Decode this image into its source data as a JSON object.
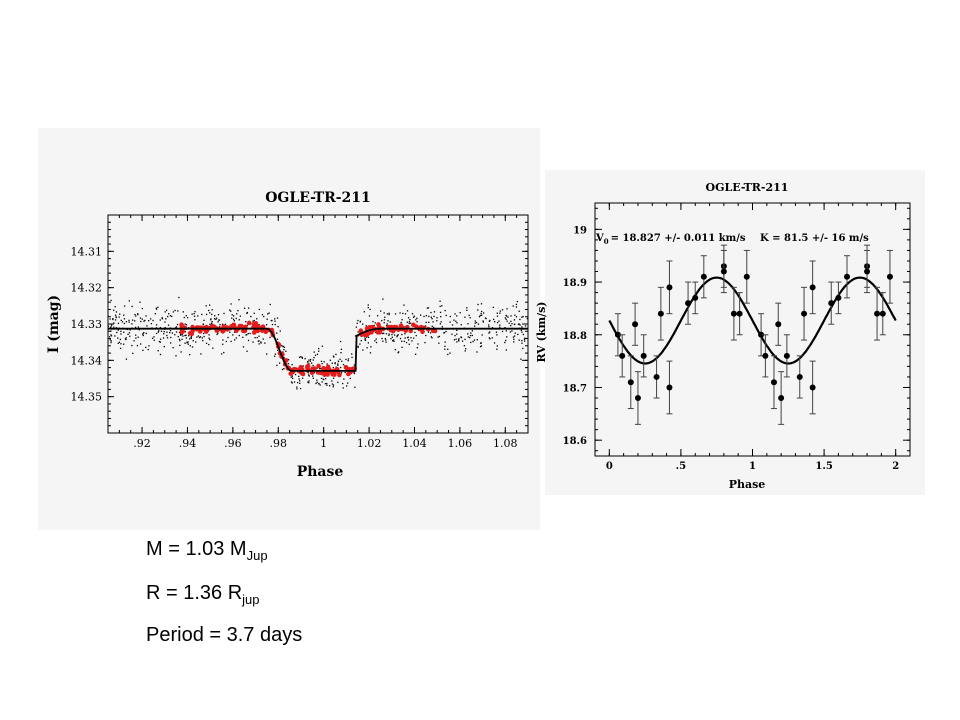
{
  "captions": {
    "mass": {
      "text": "M = 1.03 M",
      "sub": "Jup"
    },
    "radius": {
      "text": "R = 1.36 R",
      "sub": "jup"
    },
    "period": {
      "text": "Period = 3.7 days"
    }
  },
  "chart_data": [
    {
      "type": "scatter",
      "title": "OGLE-TR-211",
      "xlabel": "Phase",
      "ylabel": "I (mag)",
      "xlim": [
        0.905,
        1.09
      ],
      "ylim": [
        14.3,
        14.36
      ],
      "y_inverted": true,
      "xticks": [
        0.92,
        0.94,
        0.96,
        0.98,
        1.0,
        1.02,
        1.04,
        1.06,
        1.08
      ],
      "xtick_labels": [
        ".92",
        ".94",
        ".96",
        ".98",
        "1",
        "1.02",
        "1.04",
        "1.06",
        "1.08"
      ],
      "yticks": [
        14.31,
        14.32,
        14.33,
        14.34,
        14.35
      ],
      "ytick_labels": [
        "14.31",
        "14.32",
        "14.33",
        "14.34",
        "14.35"
      ],
      "model": {
        "name": "transit model",
        "baseline": 14.3313,
        "depth": 0.0116,
        "ingress_start": 0.975,
        "full_start": 0.986,
        "full_end": 1.014,
        "egress_end": 1.025
      },
      "series": [
        {
          "name": "photometry",
          "color": "#000000",
          "marker": "dot",
          "points": "scatter around model, phase 0.905-1.09"
        },
        {
          "name": "binned",
          "color": "#e51c1c",
          "marker": "filled-circle",
          "points": "scatter around model, phase 0.937-1.05"
        }
      ]
    },
    {
      "type": "scatter",
      "title": "OGLE-TR-211",
      "annotations": [
        "V",
        "0",
        "= 18.827 +/- 0.011 km/s",
        "K = 81.5 +/- 16 m/s"
      ],
      "xlabel": "Phase",
      "ylabel": "RV (km/s)",
      "xlim": [
        -0.1,
        2.1
      ],
      "ylim": [
        18.57,
        19.05
      ],
      "xticks": [
        0,
        0.5,
        1,
        1.5,
        2
      ],
      "xtick_labels": [
        "0",
        ".5",
        "1",
        "1.5",
        "2"
      ],
      "yticks": [
        18.6,
        18.7,
        18.8,
        18.9,
        19
      ],
      "ytick_labels": [
        "18.6",
        "18.7",
        "18.8",
        "18.9",
        "19"
      ],
      "model": {
        "name": "RV fit",
        "v0": 18.827,
        "k": 0.0815,
        "phase_offset": 0.0
      },
      "points": [
        {
          "x": 0.06,
          "y": 18.8,
          "err": 0.04
        },
        {
          "x": 0.09,
          "y": 18.76,
          "err": 0.04
        },
        {
          "x": 0.15,
          "y": 18.71,
          "err": 0.05
        },
        {
          "x": 0.18,
          "y": 18.82,
          "err": 0.04
        },
        {
          "x": 0.2,
          "y": 18.68,
          "err": 0.05
        },
        {
          "x": 0.24,
          "y": 18.76,
          "err": 0.04
        },
        {
          "x": 0.33,
          "y": 18.72,
          "err": 0.04
        },
        {
          "x": 0.36,
          "y": 18.84,
          "err": 0.05
        },
        {
          "x": 0.42,
          "y": 18.89,
          "err": 0.05
        },
        {
          "x": 0.42,
          "y": 18.7,
          "err": 0.05
        },
        {
          "x": 0.55,
          "y": 18.86,
          "err": 0.04
        },
        {
          "x": 0.6,
          "y": 18.87,
          "err": 0.03
        },
        {
          "x": 0.66,
          "y": 18.91,
          "err": 0.04
        },
        {
          "x": 0.8,
          "y": 18.93,
          "err": 0.04
        },
        {
          "x": 0.8,
          "y": 18.92,
          "err": 0.04
        },
        {
          "x": 0.87,
          "y": 18.84,
          "err": 0.05
        },
        {
          "x": 0.91,
          "y": 18.84,
          "err": 0.04
        },
        {
          "x": 0.96,
          "y": 18.91,
          "err": 0.05
        },
        {
          "x": 1.06,
          "y": 18.8,
          "err": 0.04
        },
        {
          "x": 1.09,
          "y": 18.76,
          "err": 0.04
        },
        {
          "x": 1.15,
          "y": 18.71,
          "err": 0.05
        },
        {
          "x": 1.18,
          "y": 18.82,
          "err": 0.04
        },
        {
          "x": 1.2,
          "y": 18.68,
          "err": 0.05
        },
        {
          "x": 1.24,
          "y": 18.76,
          "err": 0.04
        },
        {
          "x": 1.33,
          "y": 18.72,
          "err": 0.04
        },
        {
          "x": 1.36,
          "y": 18.84,
          "err": 0.05
        },
        {
          "x": 1.42,
          "y": 18.89,
          "err": 0.05
        },
        {
          "x": 1.42,
          "y": 18.7,
          "err": 0.05
        },
        {
          "x": 1.55,
          "y": 18.86,
          "err": 0.04
        },
        {
          "x": 1.6,
          "y": 18.87,
          "err": 0.03
        },
        {
          "x": 1.66,
          "y": 18.91,
          "err": 0.04
        },
        {
          "x": 1.8,
          "y": 18.93,
          "err": 0.04
        },
        {
          "x": 1.8,
          "y": 18.92,
          "err": 0.04
        },
        {
          "x": 1.87,
          "y": 18.84,
          "err": 0.05
        },
        {
          "x": 1.91,
          "y": 18.84,
          "err": 0.04
        },
        {
          "x": 1.96,
          "y": 18.91,
          "err": 0.05
        }
      ]
    }
  ]
}
